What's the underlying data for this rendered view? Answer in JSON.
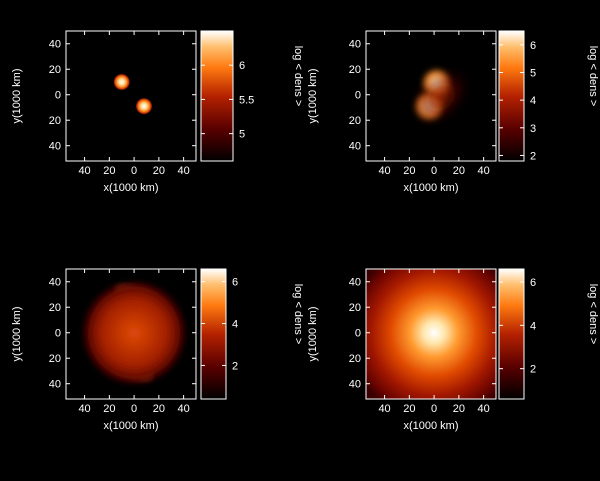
{
  "figure": {
    "background": "#000000",
    "frame_color": "#ffffff"
  },
  "chart_data": [
    {
      "type": "heatmap",
      "panel": "top-left",
      "xlabel": "x(1000 km)",
      "ylabel": "y(1000 km)",
      "xlim": [
        -55,
        50
      ],
      "ylim": [
        -52,
        50
      ],
      "xticks": [
        {
          "value": -40,
          "label": "40"
        },
        {
          "value": -20,
          "label": "20"
        },
        {
          "value": 0,
          "label": "0"
        },
        {
          "value": 20,
          "label": "20"
        },
        {
          "value": 40,
          "label": "40"
        }
      ],
      "yticks": [
        {
          "value": 40,
          "label": "40"
        },
        {
          "value": 20,
          "label": "20"
        },
        {
          "value": 0,
          "label": "0"
        },
        {
          "value": -20,
          "label": "20"
        },
        {
          "value": -40,
          "label": "40"
        }
      ],
      "colorbar": {
        "label": "log < dens >",
        "range": [
          4.6,
          6.5
        ],
        "ticks": [
          {
            "value": 6,
            "label": "6"
          },
          {
            "value": 5.5,
            "label": "5.5"
          },
          {
            "value": 5,
            "label": "5"
          }
        ]
      },
      "structures": [
        {
          "kind": "blob",
          "x": -10,
          "y": 10,
          "r": 7,
          "peak": 6.4
        },
        {
          "kind": "blob",
          "x": 8,
          "y": -9,
          "r": 7,
          "peak": 6.4
        }
      ]
    },
    {
      "type": "heatmap",
      "panel": "top-right",
      "xlabel": "x(1000 km)",
      "ylabel": "y(1000 km)",
      "xlim": [
        -55,
        50
      ],
      "ylim": [
        -52,
        50
      ],
      "xticks": [
        {
          "value": -40,
          "label": "40"
        },
        {
          "value": -20,
          "label": "20"
        },
        {
          "value": 0,
          "label": "0"
        },
        {
          "value": 20,
          "label": "20"
        },
        {
          "value": 40,
          "label": "40"
        }
      ],
      "yticks": [
        {
          "value": 40,
          "label": "40"
        },
        {
          "value": 20,
          "label": "20"
        },
        {
          "value": 0,
          "label": "0"
        },
        {
          "value": -20,
          "label": "20"
        },
        {
          "value": -40,
          "label": "40"
        }
      ],
      "colorbar": {
        "label": "log < dens >",
        "range": [
          1.8,
          6.5
        ],
        "ticks": [
          {
            "value": 6,
            "label": "6"
          },
          {
            "value": 5,
            "label": "5"
          },
          {
            "value": 4,
            "label": "4"
          },
          {
            "value": 3,
            "label": "3"
          },
          {
            "value": 2,
            "label": "2"
          }
        ]
      },
      "structures": [
        {
          "kind": "blob",
          "x": 2,
          "y": 9,
          "r": 12,
          "peak": 6.3
        },
        {
          "kind": "blob",
          "x": -4,
          "y": -9,
          "r": 12,
          "peak": 6.3
        },
        {
          "kind": "halo",
          "x": 0,
          "y": 0,
          "r": 28,
          "peak": 4.0
        }
      ]
    },
    {
      "type": "heatmap",
      "panel": "bottom-left",
      "xlabel": "x(1000 km)",
      "ylabel": "y(1000 km)",
      "xlim": [
        -55,
        50
      ],
      "ylim": [
        -52,
        50
      ],
      "xticks": [
        {
          "value": -40,
          "label": "40"
        },
        {
          "value": -20,
          "label": "20"
        },
        {
          "value": 0,
          "label": "0"
        },
        {
          "value": 20,
          "label": "20"
        },
        {
          "value": 40,
          "label": "40"
        }
      ],
      "yticks": [
        {
          "value": 40,
          "label": "40"
        },
        {
          "value": 20,
          "label": "20"
        },
        {
          "value": 0,
          "label": "0"
        },
        {
          "value": -20,
          "label": "20"
        },
        {
          "value": -40,
          "label": "40"
        }
      ],
      "colorbar": {
        "label": "log < dens >",
        "range": [
          0.4,
          6.6
        ],
        "ticks": [
          {
            "value": 6,
            "label": "6"
          },
          {
            "value": 4,
            "label": "4"
          },
          {
            "value": 2,
            "label": "2"
          }
        ]
      },
      "structures": [
        {
          "kind": "core",
          "x": 0,
          "y": 0,
          "r": 14,
          "peak": 6.4
        },
        {
          "kind": "spiral-arm",
          "x": 0,
          "y": 0,
          "r": 40,
          "peak": 4.5
        },
        {
          "kind": "spiral-arm",
          "x": 0,
          "y": 0,
          "r": 40,
          "peak": 4.5
        },
        {
          "kind": "disk",
          "x": 0,
          "y": 0,
          "r": 44,
          "peak": 3.0
        }
      ]
    },
    {
      "type": "heatmap",
      "panel": "bottom-right",
      "xlabel": "x(1000 km)",
      "ylabel": "y(1000 km)",
      "xlim": [
        -55,
        50
      ],
      "ylim": [
        -52,
        50
      ],
      "xticks": [
        {
          "value": -40,
          "label": "40"
        },
        {
          "value": -20,
          "label": "20"
        },
        {
          "value": 0,
          "label": "0"
        },
        {
          "value": 20,
          "label": "20"
        },
        {
          "value": 40,
          "label": "40"
        }
      ],
      "yticks": [
        {
          "value": 40,
          "label": "40"
        },
        {
          "value": 20,
          "label": "20"
        },
        {
          "value": 0,
          "label": "0"
        },
        {
          "value": -20,
          "label": "20"
        },
        {
          "value": -40,
          "label": "40"
        }
      ],
      "colorbar": {
        "label": "log < dens >",
        "range": [
          0.6,
          6.6
        ],
        "ticks": [
          {
            "value": 6,
            "label": "6"
          },
          {
            "value": 4,
            "label": "4"
          },
          {
            "value": 2,
            "label": "2"
          }
        ]
      },
      "structures": [
        {
          "kind": "core",
          "x": 0,
          "y": 0,
          "r": 14,
          "peak": 6.5
        },
        {
          "kind": "envelope",
          "x": 0,
          "y": 0,
          "r": 70,
          "peak": 4.2
        }
      ]
    }
  ]
}
